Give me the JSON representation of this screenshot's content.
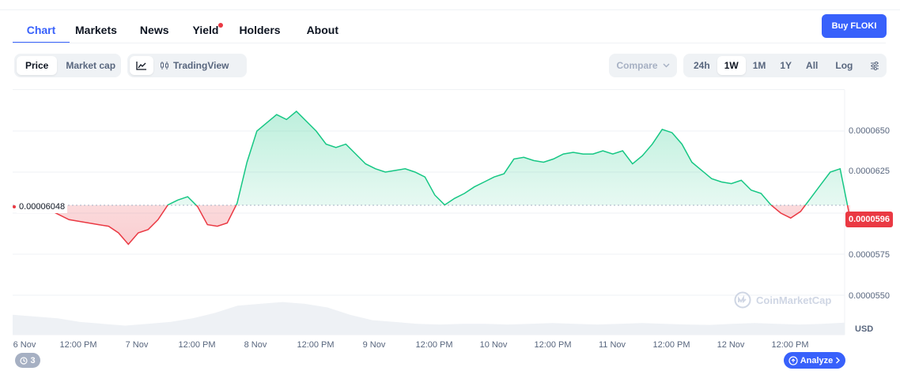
{
  "tabs": {
    "chart": "Chart",
    "markets": "Markets",
    "news": "News",
    "yield": "Yield",
    "holders": "Holders",
    "about": "About"
  },
  "buy_button": "Buy FLOKI",
  "toolbar": {
    "price": "Price",
    "market_cap": "Market cap",
    "tradingview": "TradingView",
    "compare": "Compare",
    "ranges": [
      "24h",
      "1W",
      "1M",
      "1Y",
      "All"
    ],
    "selected_range": "1W",
    "log": "Log"
  },
  "watermark": "CoinMarketCap",
  "history_count": "3",
  "analyze": "Analyze",
  "colors": {
    "accent": "#3861fb",
    "up": "#16c784",
    "down": "#ea3943"
  },
  "chart_data": {
    "type": "area",
    "currency": "USD",
    "reference_label": "0.00006048",
    "reference_value": 6.048e-05,
    "current_price_label": "0.0000596",
    "current_price": 5.96e-05,
    "y_ticks": [
      "0.0000650",
      "0.0000625",
      "0.0000600",
      "0.0000575",
      "0.0000550"
    ],
    "y_tick_values": [
      6.5e-05,
      6.25e-05,
      6e-05,
      5.75e-05,
      5.5e-05
    ],
    "x_tick_labels": [
      "6 Nov",
      "12:00 PM",
      "7 Nov",
      "12:00 PM",
      "8 Nov",
      "12:00 PM",
      "9 Nov",
      "12:00 PM",
      "10 Nov",
      "12:00 PM",
      "11 Nov",
      "12:00 PM",
      "12 Nov",
      "12:00 PM"
    ],
    "x_tick_hours": [
      0,
      12,
      24,
      36,
      48,
      60,
      72,
      84,
      96,
      108,
      120,
      132,
      144,
      156
    ],
    "x_hours": [
      0,
      3,
      5,
      7,
      9,
      11,
      13,
      15,
      17,
      19,
      21,
      23,
      25,
      27,
      29,
      31,
      33,
      35,
      37,
      39,
      41,
      43,
      45,
      47,
      49,
      51,
      53,
      55,
      57,
      59,
      61,
      63,
      65,
      67,
      69,
      71,
      73,
      75,
      77,
      79,
      81,
      83,
      85,
      87,
      89,
      91,
      93,
      95,
      97,
      99,
      101,
      103,
      105,
      107,
      109,
      111,
      113,
      115,
      117,
      119,
      121,
      123,
      125,
      127,
      129,
      131,
      133,
      135,
      137,
      139,
      141,
      143,
      145,
      147,
      149,
      151,
      153,
      155,
      157,
      159,
      161,
      163,
      165,
      167
    ],
    "prices": [
      6.05e-05,
      6.03e-05,
      6.02e-05,
      5.99e-05,
      5.96e-05,
      5.95e-05,
      5.94e-05,
      5.93e-05,
      5.92e-05,
      5.88e-05,
      5.81e-05,
      5.88e-05,
      5.9e-05,
      5.96e-05,
      6.05e-05,
      6.08e-05,
      6.1e-05,
      6.04e-05,
      5.93e-05,
      5.92e-05,
      5.94e-05,
      6.06e-05,
      6.31e-05,
      6.5e-05,
      6.55e-05,
      6.6e-05,
      6.57e-05,
      6.62e-05,
      6.56e-05,
      6.5e-05,
      6.42e-05,
      6.4e-05,
      6.42e-05,
      6.36e-05,
      6.3e-05,
      6.27e-05,
      6.25e-05,
      6.26e-05,
      6.27e-05,
      6.25e-05,
      6.22e-05,
      6.11e-05,
      6.05e-05,
      6.09e-05,
      6.12e-05,
      6.16e-05,
      6.19e-05,
      6.22e-05,
      6.24e-05,
      6.33e-05,
      6.34e-05,
      6.32e-05,
      6.31e-05,
      6.33e-05,
      6.36e-05,
      6.37e-05,
      6.36e-05,
      6.36e-05,
      6.38e-05,
      6.36e-05,
      6.38e-05,
      6.3e-05,
      6.35e-05,
      6.42e-05,
      6.51e-05,
      6.49e-05,
      6.42e-05,
      6.31e-05,
      6.26e-05,
      6.21e-05,
      6.19e-05,
      6.18e-05,
      6.2e-05,
      6.14e-05,
      6.12e-05,
      6.05e-05,
      6e-05,
      5.97e-05,
      6.01e-05,
      6.09e-05,
      6.17e-05,
      6.25e-05,
      6.27e-05,
      5.97e-05
    ]
  }
}
